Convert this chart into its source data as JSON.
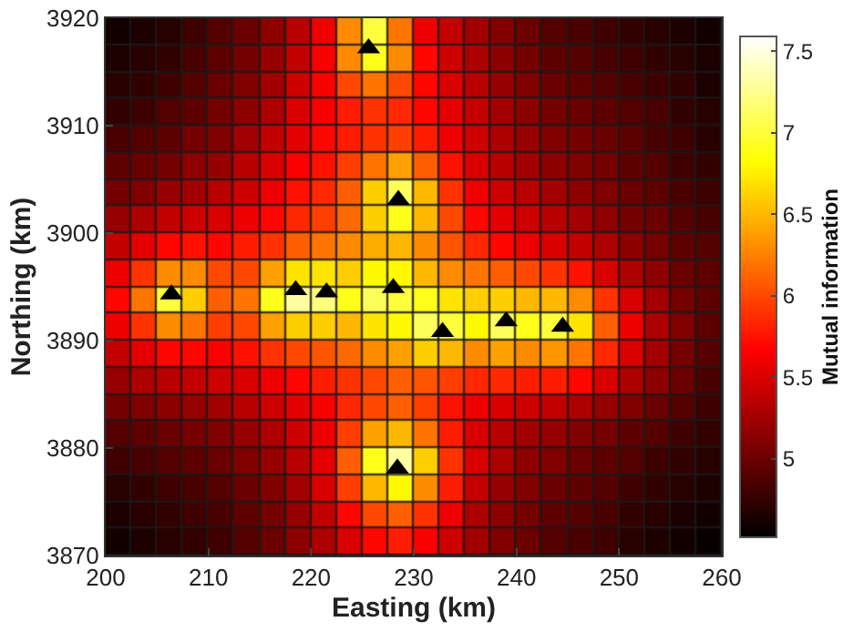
{
  "chart_data": {
    "type": "heatmap",
    "xlabel": "Easting (km)",
    "ylabel": "Northing (km)",
    "clabel": "Mutual information",
    "xlim": [
      200,
      260
    ],
    "ylim": [
      3870,
      3920
    ],
    "xticks": [
      200,
      210,
      220,
      230,
      240,
      250,
      260
    ],
    "yticks": [
      3870,
      3880,
      3890,
      3900,
      3910,
      3920
    ],
    "clim": [
      4.52,
      7.59
    ],
    "cticks": [
      5,
      5.5,
      6,
      6.5,
      7,
      7.5
    ],
    "marker": "triangle",
    "x": [
      201.25,
      203.75,
      206.25,
      208.75,
      211.25,
      213.75,
      216.25,
      218.75,
      221.25,
      223.75,
      226.25,
      228.75,
      231.25,
      233.75,
      236.25,
      238.75,
      241.25,
      243.75,
      246.25,
      248.75,
      251.25,
      253.75,
      256.25,
      258.75
    ],
    "y": [
      3918.75,
      3916.25,
      3913.75,
      3911.25,
      3908.75,
      3906.25,
      3903.75,
      3901.25,
      3898.75,
      3896.25,
      3893.75,
      3891.25,
      3888.75,
      3886.25,
      3883.75,
      3881.25,
      3878.75,
      3876.25,
      3873.75,
      3871.25
    ],
    "cells": [
      [
        4.6,
        4.65,
        4.7,
        4.8,
        4.9,
        5.0,
        5.15,
        5.35,
        5.6,
        6.3,
        7.0,
        6.2,
        5.6,
        5.4,
        5.25,
        5.1,
        5.0,
        4.9,
        4.85,
        4.8,
        4.75,
        4.7,
        4.65,
        4.6
      ],
      [
        4.65,
        4.7,
        4.75,
        4.85,
        4.95,
        5.05,
        5.2,
        5.4,
        5.65,
        6.3,
        6.9,
        6.3,
        5.7,
        5.45,
        5.3,
        5.15,
        5.05,
        4.95,
        4.9,
        4.85,
        4.8,
        4.75,
        4.7,
        4.65
      ],
      [
        4.7,
        4.75,
        4.8,
        4.9,
        5.0,
        5.1,
        5.25,
        5.45,
        5.65,
        6.0,
        6.2,
        6.0,
        5.7,
        5.5,
        5.35,
        5.2,
        5.1,
        5.0,
        4.95,
        4.9,
        4.85,
        4.8,
        4.75,
        4.65
      ],
      [
        4.75,
        4.8,
        4.9,
        4.95,
        5.05,
        5.15,
        5.3,
        5.5,
        5.65,
        5.8,
        5.9,
        5.85,
        5.7,
        5.55,
        5.4,
        5.25,
        5.15,
        5.05,
        5.0,
        4.95,
        4.9,
        4.85,
        4.75,
        4.7
      ],
      [
        4.85,
        4.9,
        4.95,
        5.05,
        5.1,
        5.25,
        5.4,
        5.55,
        5.7,
        5.8,
        5.9,
        5.95,
        5.8,
        5.6,
        5.45,
        5.3,
        5.2,
        5.1,
        5.05,
        5.0,
        4.95,
        4.85,
        4.8,
        4.7
      ],
      [
        4.95,
        5.0,
        5.05,
        5.15,
        5.2,
        5.35,
        5.5,
        5.65,
        5.75,
        5.95,
        6.2,
        6.4,
        6.1,
        5.75,
        5.5,
        5.35,
        5.25,
        5.15,
        5.1,
        5.05,
        4.95,
        4.9,
        4.8,
        4.75
      ],
      [
        5.05,
        5.1,
        5.2,
        5.25,
        5.35,
        5.45,
        5.6,
        5.75,
        5.85,
        6.1,
        6.6,
        7.1,
        6.5,
        5.9,
        5.6,
        5.45,
        5.35,
        5.25,
        5.15,
        5.1,
        5.0,
        4.95,
        4.85,
        4.8
      ],
      [
        5.2,
        5.3,
        5.4,
        5.45,
        5.5,
        5.6,
        5.7,
        5.85,
        5.95,
        6.15,
        6.6,
        6.9,
        6.5,
        6.0,
        5.7,
        5.55,
        5.45,
        5.35,
        5.25,
        5.15,
        5.05,
        5.0,
        4.9,
        4.85
      ],
      [
        5.4,
        5.55,
        5.7,
        5.75,
        5.7,
        5.8,
        5.9,
        6.1,
        6.2,
        6.3,
        6.45,
        6.5,
        6.3,
        6.05,
        5.85,
        5.7,
        5.6,
        5.5,
        5.4,
        5.3,
        5.15,
        5.05,
        4.95,
        4.9
      ],
      [
        5.6,
        5.9,
        6.3,
        6.3,
        6.0,
        6.0,
        6.4,
        6.7,
        6.7,
        6.6,
        6.8,
        6.8,
        6.5,
        6.3,
        6.2,
        6.1,
        6.0,
        5.9,
        5.75,
        5.5,
        5.3,
        5.15,
        5.0,
        4.95
      ],
      [
        5.7,
        6.2,
        7.0,
        6.6,
        6.1,
        6.2,
        6.9,
        7.3,
        7.2,
        6.9,
        7.1,
        7.0,
        6.9,
        6.7,
        6.6,
        6.6,
        6.5,
        6.5,
        6.3,
        5.9,
        5.5,
        5.25,
        5.05,
        4.95
      ],
      [
        5.6,
        5.9,
        6.3,
        6.2,
        5.95,
        6.0,
        6.4,
        6.6,
        6.6,
        6.5,
        6.7,
        6.8,
        7.1,
        7.0,
        6.8,
        7.1,
        6.9,
        7.0,
        6.7,
        6.1,
        5.6,
        5.3,
        5.1,
        4.95
      ],
      [
        5.4,
        5.55,
        5.7,
        5.7,
        5.65,
        5.75,
        5.9,
        6.0,
        6.05,
        6.15,
        6.3,
        6.4,
        6.6,
        6.5,
        6.3,
        6.4,
        6.3,
        6.35,
        6.2,
        5.85,
        5.5,
        5.25,
        5.05,
        4.9
      ],
      [
        5.2,
        5.3,
        5.35,
        5.4,
        5.45,
        5.5,
        5.6,
        5.7,
        5.8,
        5.9,
        6.0,
        6.1,
        6.05,
        5.95,
        5.85,
        5.85,
        5.8,
        5.8,
        5.7,
        5.5,
        5.3,
        5.15,
        5.0,
        4.85
      ],
      [
        5.05,
        5.1,
        5.15,
        5.2,
        5.25,
        5.35,
        5.45,
        5.55,
        5.65,
        5.85,
        6.0,
        6.1,
        5.95,
        5.75,
        5.6,
        5.5,
        5.45,
        5.4,
        5.3,
        5.2,
        5.1,
        5.0,
        4.9,
        4.8
      ],
      [
        4.9,
        4.95,
        5.0,
        5.05,
        5.1,
        5.2,
        5.3,
        5.45,
        5.6,
        5.95,
        6.4,
        6.5,
        6.2,
        5.8,
        5.5,
        5.35,
        5.25,
        5.2,
        5.1,
        5.05,
        4.95,
        4.9,
        4.8,
        4.75
      ],
      [
        4.8,
        4.85,
        4.9,
        4.95,
        5.0,
        5.1,
        5.2,
        5.35,
        5.55,
        6.1,
        6.9,
        7.3,
        6.6,
        5.9,
        5.5,
        5.3,
        5.15,
        5.1,
        5.0,
        4.95,
        4.9,
        4.8,
        4.75,
        4.7
      ],
      [
        4.7,
        4.75,
        4.8,
        4.85,
        4.9,
        5.0,
        5.1,
        5.25,
        5.5,
        5.95,
        6.5,
        6.8,
        6.3,
        5.8,
        5.4,
        5.2,
        5.1,
        5.0,
        4.95,
        4.9,
        4.8,
        4.75,
        4.7,
        4.65
      ],
      [
        4.65,
        4.7,
        4.75,
        4.8,
        4.85,
        4.95,
        5.05,
        5.2,
        5.4,
        5.7,
        6.0,
        6.1,
        5.9,
        5.6,
        5.3,
        5.15,
        5.05,
        4.95,
        4.9,
        4.85,
        4.75,
        4.7,
        4.65,
        4.6
      ],
      [
        4.6,
        4.65,
        4.7,
        4.75,
        4.8,
        4.9,
        5.0,
        5.15,
        5.3,
        5.5,
        5.7,
        5.8,
        5.65,
        5.45,
        5.25,
        5.1,
        5.0,
        4.9,
        4.85,
        4.8,
        4.7,
        4.65,
        4.6,
        4.55
      ]
    ],
    "series": [
      {
        "type": "scatter",
        "color": "#000000",
        "x": [
          206.4,
          218.5,
          221.5,
          228.0,
          225.6,
          228.5,
          232.8,
          239.0,
          244.5,
          228.4
        ],
        "values": [
          3894.3,
          3894.7,
          3894.5,
          3894.9,
          3917.2,
          3903.1,
          3890.8,
          3891.8,
          3891.3,
          3878.1
        ]
      }
    ]
  }
}
